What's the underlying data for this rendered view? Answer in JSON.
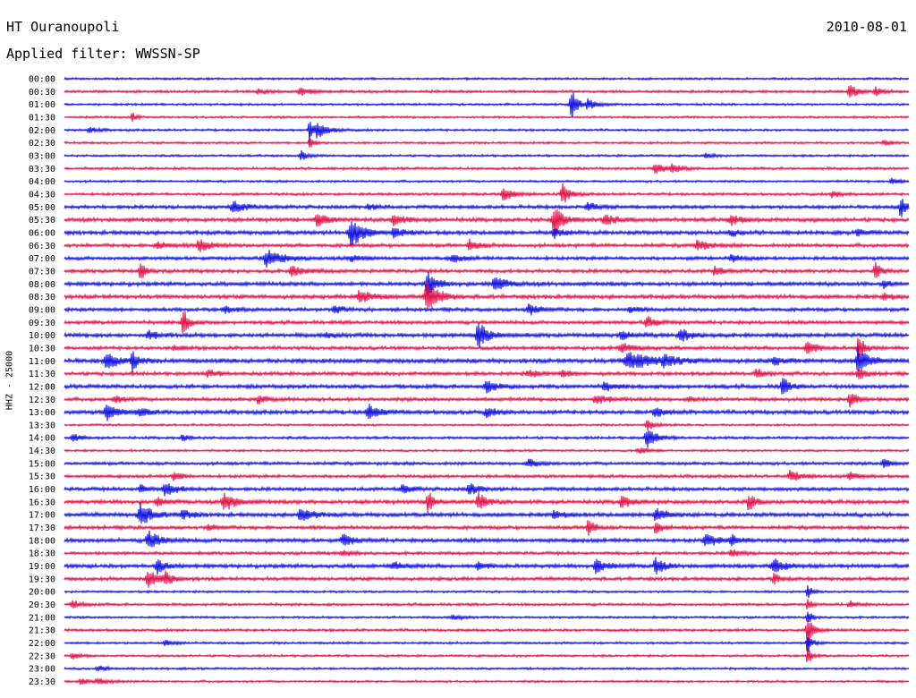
{
  "header": {
    "station": "HT Ouranoupoli",
    "date": "2010-08-01",
    "filter": "Applied filter: WWSSN-SP"
  },
  "colors": {
    "even": "#1010e0",
    "odd": "#e0144a"
  },
  "chart_data": {
    "type": "line",
    "title": "HT Ouranoupoli",
    "date": "2010-08-01",
    "filter": "Applied filter: WWSSN-SP",
    "ylabel": "HHZ - 25000",
    "tick_labels": [
      "00:00",
      "00:30",
      "01:00",
      "01:30",
      "02:00",
      "02:30",
      "03:00",
      "03:30",
      "04:00",
      "04:30",
      "05:00",
      "05:30",
      "06:00",
      "06:30",
      "07:00",
      "07:30",
      "08:00",
      "08:30",
      "09:00",
      "09:30",
      "10:00",
      "10:30",
      "11:00",
      "11:30",
      "12:00",
      "12:30",
      "13:00",
      "13:30",
      "14:00",
      "14:30",
      "15:00",
      "15:30",
      "16:00",
      "16:30",
      "17:00",
      "17:30",
      "18:00",
      "18:30",
      "19:00",
      "19:30",
      "20:00",
      "20:30",
      "21:00",
      "21:30",
      "22:00",
      "22:30",
      "23:00",
      "23:30"
    ],
    "series": [
      {
        "base": 1.0,
        "events": []
      },
      {
        "base": 1.2,
        "events": [
          [
            0.23,
            3,
            0.01
          ],
          [
            0.28,
            4,
            0.012
          ],
          [
            0.93,
            7,
            0.01
          ],
          [
            0.96,
            5,
            0.008
          ]
        ]
      },
      {
        "base": 1.0,
        "events": [
          [
            0.6,
            22,
            0.006
          ],
          [
            0.62,
            6,
            0.01
          ]
        ]
      },
      {
        "base": 1.0,
        "events": [
          [
            0.08,
            6,
            0.004
          ]
        ]
      },
      {
        "base": 1.0,
        "events": [
          [
            0.03,
            3,
            0.01
          ],
          [
            0.29,
            16,
            0.004
          ],
          [
            0.3,
            8,
            0.012
          ]
        ]
      },
      {
        "base": 1.0,
        "events": [
          [
            0.29,
            8,
            0.005
          ],
          [
            0.97,
            3,
            0.01
          ]
        ]
      },
      {
        "base": 1.0,
        "events": [
          [
            0.28,
            6,
            0.008
          ],
          [
            0.76,
            3,
            0.008
          ]
        ]
      },
      {
        "base": 1.2,
        "events": [
          [
            0.7,
            6,
            0.012
          ],
          [
            0.72,
            4,
            0.01
          ]
        ]
      },
      {
        "base": 1.0,
        "events": [
          [
            0.98,
            4,
            0.008
          ]
        ]
      },
      {
        "base": 1.2,
        "events": [
          [
            0.52,
            8,
            0.01
          ],
          [
            0.59,
            12,
            0.008
          ],
          [
            0.91,
            3,
            0.012
          ]
        ]
      },
      {
        "base": 1.6,
        "events": [
          [
            0.2,
            6,
            0.014
          ],
          [
            0.36,
            3,
            0.01
          ],
          [
            0.62,
            5,
            0.01
          ],
          [
            0.99,
            14,
            0.005
          ]
        ]
      },
      {
        "base": 1.8,
        "events": [
          [
            0.3,
            9,
            0.01
          ],
          [
            0.39,
            6,
            0.012
          ],
          [
            0.58,
            17,
            0.01
          ],
          [
            0.64,
            6,
            0.012
          ],
          [
            0.79,
            5,
            0.012
          ]
        ]
      },
      {
        "base": 1.8,
        "events": [
          [
            0.34,
            18,
            0.012
          ],
          [
            0.39,
            6,
            0.01
          ],
          [
            0.58,
            5,
            0.01
          ],
          [
            0.79,
            3,
            0.01
          ],
          [
            0.94,
            3,
            0.01
          ]
        ]
      },
      {
        "base": 1.6,
        "events": [
          [
            0.11,
            4,
            0.012
          ],
          [
            0.16,
            7,
            0.012
          ],
          [
            0.48,
            6,
            0.01
          ],
          [
            0.75,
            6,
            0.012
          ]
        ]
      },
      {
        "base": 1.6,
        "events": [
          [
            0.24,
            9,
            0.018
          ],
          [
            0.34,
            3,
            0.012
          ],
          [
            0.46,
            4,
            0.012
          ],
          [
            0.79,
            4,
            0.01
          ]
        ]
      },
      {
        "base": 1.6,
        "events": [
          [
            0.09,
            10,
            0.006
          ],
          [
            0.27,
            5,
            0.015
          ],
          [
            0.77,
            6,
            0.008
          ],
          [
            0.96,
            10,
            0.006
          ]
        ]
      },
      {
        "base": 1.8,
        "events": [
          [
            0.43,
            13,
            0.01
          ],
          [
            0.51,
            8,
            0.012
          ],
          [
            0.97,
            4,
            0.008
          ]
        ]
      },
      {
        "base": 1.8,
        "events": [
          [
            0.35,
            7,
            0.015
          ],
          [
            0.43,
            18,
            0.012
          ],
          [
            0.97,
            5,
            0.008
          ]
        ]
      },
      {
        "base": 1.6,
        "events": [
          [
            0.19,
            4,
            0.01
          ],
          [
            0.32,
            4,
            0.01
          ],
          [
            0.55,
            6,
            0.012
          ],
          [
            0.67,
            3,
            0.01
          ]
        ]
      },
      {
        "base": 1.6,
        "events": [
          [
            0.14,
            18,
            0.006
          ],
          [
            0.69,
            7,
            0.01
          ]
        ]
      },
      {
        "base": 1.8,
        "events": [
          [
            0.1,
            5,
            0.01
          ],
          [
            0.31,
            3,
            0.01
          ],
          [
            0.49,
            16,
            0.01
          ],
          [
            0.66,
            4,
            0.01
          ],
          [
            0.73,
            7,
            0.012
          ]
        ]
      },
      {
        "base": 1.6,
        "events": [
          [
            0.13,
            3,
            0.01
          ],
          [
            0.66,
            5,
            0.015
          ],
          [
            0.88,
            8,
            0.01
          ],
          [
            0.94,
            18,
            0.006
          ]
        ]
      },
      {
        "base": 2.0,
        "events": [
          [
            0.05,
            9,
            0.012
          ],
          [
            0.08,
            12,
            0.006
          ],
          [
            0.67,
            10,
            0.025
          ],
          [
            0.71,
            6,
            0.012
          ],
          [
            0.84,
            4,
            0.01
          ],
          [
            0.94,
            16,
            0.01
          ]
        ]
      },
      {
        "base": 1.6,
        "events": [
          [
            0.17,
            4,
            0.01
          ],
          [
            0.55,
            4,
            0.012
          ],
          [
            0.59,
            4,
            0.01
          ],
          [
            0.82,
            5,
            0.01
          ],
          [
            0.94,
            8,
            0.008
          ]
        ]
      },
      {
        "base": 1.8,
        "events": [
          [
            0.5,
            7,
            0.01
          ],
          [
            0.64,
            4,
            0.012
          ],
          [
            0.85,
            14,
            0.006
          ]
        ]
      },
      {
        "base": 1.6,
        "events": [
          [
            0.06,
            4,
            0.01
          ],
          [
            0.23,
            5,
            0.01
          ],
          [
            0.63,
            5,
            0.015
          ],
          [
            0.74,
            3,
            0.01
          ],
          [
            0.93,
            10,
            0.008
          ]
        ]
      },
      {
        "base": 1.8,
        "events": [
          [
            0.05,
            9,
            0.012
          ],
          [
            0.09,
            4,
            0.01
          ],
          [
            0.36,
            9,
            0.01
          ],
          [
            0.5,
            5,
            0.01
          ],
          [
            0.7,
            5,
            0.01
          ]
        ]
      },
      {
        "base": 1.0,
        "events": [
          [
            0.69,
            6,
            0.008
          ]
        ]
      },
      {
        "base": 1.2,
        "events": [
          [
            0.01,
            5,
            0.008
          ],
          [
            0.14,
            5,
            0.006
          ],
          [
            0.69,
            12,
            0.01
          ]
        ]
      },
      {
        "base": 1.0,
        "events": [
          [
            0.68,
            4,
            0.01
          ]
        ]
      },
      {
        "base": 1.4,
        "events": [
          [
            0.55,
            4,
            0.012
          ],
          [
            0.97,
            5,
            0.008
          ]
        ]
      },
      {
        "base": 1.4,
        "events": [
          [
            0.13,
            6,
            0.008
          ],
          [
            0.86,
            6,
            0.012
          ],
          [
            0.93,
            4,
            0.01
          ]
        ]
      },
      {
        "base": 1.6,
        "events": [
          [
            0.12,
            8,
            0.012
          ],
          [
            0.09,
            6,
            0.006
          ],
          [
            0.4,
            5,
            0.01
          ],
          [
            0.48,
            7,
            0.01
          ]
        ]
      },
      {
        "base": 1.8,
        "events": [
          [
            0.11,
            4,
            0.01
          ],
          [
            0.19,
            11,
            0.012
          ],
          [
            0.43,
            17,
            0.005
          ],
          [
            0.49,
            12,
            0.008
          ],
          [
            0.66,
            6,
            0.012
          ],
          [
            0.81,
            12,
            0.006
          ]
        ]
      },
      {
        "base": 1.8,
        "events": [
          [
            0.09,
            14,
            0.012
          ],
          [
            0.14,
            5,
            0.01
          ],
          [
            0.28,
            8,
            0.012
          ],
          [
            0.58,
            5,
            0.01
          ],
          [
            0.7,
            8,
            0.01
          ]
        ]
      },
      {
        "base": 1.6,
        "events": [
          [
            0.17,
            3,
            0.01
          ],
          [
            0.62,
            12,
            0.006
          ],
          [
            0.7,
            8,
            0.006
          ]
        ]
      },
      {
        "base": 1.8,
        "events": [
          [
            0.1,
            10,
            0.012
          ],
          [
            0.33,
            7,
            0.01
          ],
          [
            0.76,
            7,
            0.012
          ],
          [
            0.79,
            5,
            0.01
          ]
        ]
      },
      {
        "base": 1.4,
        "events": [
          [
            0.33,
            3,
            0.01
          ],
          [
            0.79,
            4,
            0.01
          ]
        ]
      },
      {
        "base": 1.8,
        "events": [
          [
            0.11,
            8,
            0.008
          ],
          [
            0.39,
            4,
            0.01
          ],
          [
            0.49,
            4,
            0.01
          ],
          [
            0.63,
            8,
            0.01
          ],
          [
            0.7,
            11,
            0.008
          ],
          [
            0.84,
            9,
            0.012
          ]
        ]
      },
      {
        "base": 1.6,
        "events": [
          [
            0.1,
            10,
            0.012
          ],
          [
            0.12,
            6,
            0.008
          ],
          [
            0.84,
            6,
            0.006
          ]
        ]
      },
      {
        "base": 1.0,
        "events": [
          [
            0.88,
            8,
            0.005
          ]
        ]
      },
      {
        "base": 1.2,
        "events": [
          [
            0.01,
            4,
            0.01
          ],
          [
            0.88,
            6,
            0.005
          ],
          [
            0.93,
            4,
            0.008
          ]
        ]
      },
      {
        "base": 1.0,
        "events": [
          [
            0.46,
            3,
            0.01
          ],
          [
            0.88,
            8,
            0.005
          ]
        ]
      },
      {
        "base": 1.2,
        "events": [
          [
            0.88,
            18,
            0.006
          ]
        ]
      },
      {
        "base": 1.0,
        "events": [
          [
            0.12,
            3,
            0.01
          ],
          [
            0.88,
            12,
            0.005
          ]
        ]
      },
      {
        "base": 1.0,
        "events": [
          [
            0.01,
            3,
            0.01
          ],
          [
            0.88,
            10,
            0.005
          ]
        ]
      },
      {
        "base": 1.0,
        "events": [
          [
            0.04,
            3,
            0.01
          ]
        ]
      },
      {
        "base": 1.0,
        "events": [
          [
            0.02,
            3,
            0.01
          ],
          [
            0.04,
            4,
            0.012
          ]
        ]
      }
    ]
  }
}
